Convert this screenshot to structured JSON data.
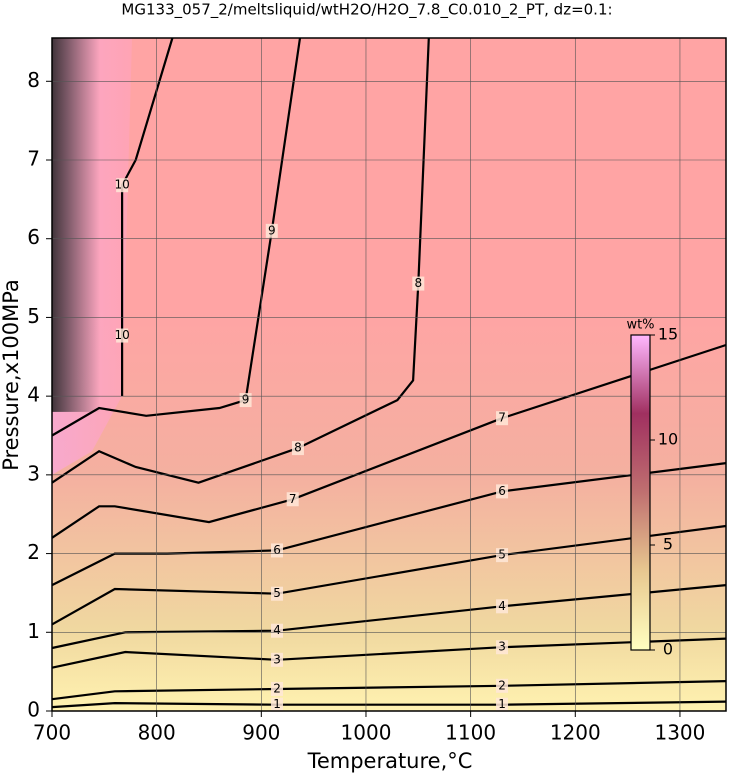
{
  "chart_data": {
    "type": "contour",
    "title": "MG133_057_2/meltsliquid/wtH2O/H2O_7.8_C0.010_2_PT, dz=0.1:",
    "x_label": "Temperature,°C",
    "y_label": "Pressure,x100MPa",
    "xlim": [
      700,
      1344
    ],
    "ylim": [
      0,
      8.55
    ],
    "xticks": [
      700,
      800,
      900,
      1000,
      1100,
      1200,
      1300
    ],
    "yticks": [
      0,
      1,
      2,
      3,
      4,
      5,
      6,
      7,
      8
    ],
    "grid": true,
    "contours": [
      {
        "level": 1,
        "x": [
          700,
          760,
          915,
          1130,
          1344
        ],
        "y": [
          0.05,
          0.1,
          0.08,
          0.08,
          0.12
        ]
      },
      {
        "level": 2,
        "x": [
          700,
          760,
          915,
          1130,
          1344
        ],
        "y": [
          0.15,
          0.25,
          0.28,
          0.32,
          0.38
        ]
      },
      {
        "level": 3,
        "x": [
          700,
          770,
          915,
          1130,
          1344
        ],
        "y": [
          0.55,
          0.75,
          0.65,
          0.81,
          0.92
        ]
      },
      {
        "level": 4,
        "x": [
          700,
          770,
          915,
          1130,
          1344
        ],
        "y": [
          0.8,
          1.0,
          1.02,
          1.33,
          1.6
        ]
      },
      {
        "level": 5,
        "x": [
          700,
          760,
          915,
          1130,
          1344
        ],
        "y": [
          1.1,
          1.55,
          1.49,
          1.98,
          2.35
        ]
      },
      {
        "level": 6,
        "x": [
          700,
          760,
          810,
          915,
          1130,
          1344
        ],
        "y": [
          1.6,
          2.0,
          2.0,
          2.04,
          2.79,
          3.15
        ]
      },
      {
        "level": 7,
        "x": [
          700,
          745,
          760,
          850,
          930,
          1130,
          1344
        ],
        "y": [
          2.2,
          2.6,
          2.6,
          2.4,
          2.69,
          3.72,
          4.65
        ]
      },
      {
        "level": 8,
        "x": [
          700,
          745,
          780,
          840,
          935,
          1030,
          1045,
          1050,
          1060
        ],
        "y": [
          2.9,
          3.3,
          3.1,
          2.9,
          3.34,
          3.95,
          4.2,
          5.43,
          8.55
        ]
      },
      {
        "level": 9,
        "x": [
          700,
          745,
          790,
          860,
          885,
          910,
          937
        ],
        "y": [
          3.5,
          3.85,
          3.75,
          3.85,
          3.95,
          6.1,
          8.55
        ]
      },
      {
        "level": 10,
        "x": [
          767,
          767,
          767,
          780,
          815
        ],
        "y": [
          4.0,
          4.77,
          6.68,
          7.0,
          8.55
        ]
      }
    ],
    "colorbar": {
      "label": "wt%",
      "range": [
        0,
        15
      ],
      "ticks": [
        0,
        5,
        10,
        15
      ],
      "colors": [
        "#ffffc0",
        "#e8c890",
        "#c07070",
        "#a03060",
        "#ffb8ff"
      ]
    }
  }
}
